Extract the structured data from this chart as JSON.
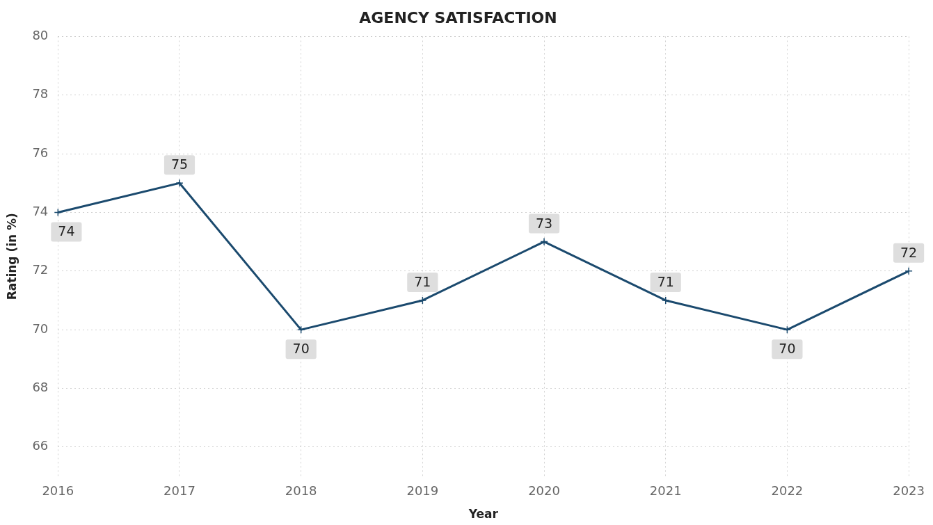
{
  "chart_data": {
    "type": "line",
    "title": "AGENCY SATISFACTION",
    "xlabel": "Year",
    "ylabel": "Rating (in %)",
    "categories": [
      "2016",
      "2017",
      "2018",
      "2019",
      "2020",
      "2021",
      "2022",
      "2023"
    ],
    "series": [
      {
        "color": "#1b4a6e",
        "values": [
          74,
          75,
          70,
          71,
          73,
          71,
          70,
          72
        ]
      }
    ],
    "ylim": [
      65,
      80
    ],
    "yticks": [
      66,
      68,
      70,
      72,
      74,
      76,
      78,
      80
    ],
    "grid": true,
    "legend": false,
    "marker": "cross",
    "line_style": "solid",
    "data_labels": true
  }
}
